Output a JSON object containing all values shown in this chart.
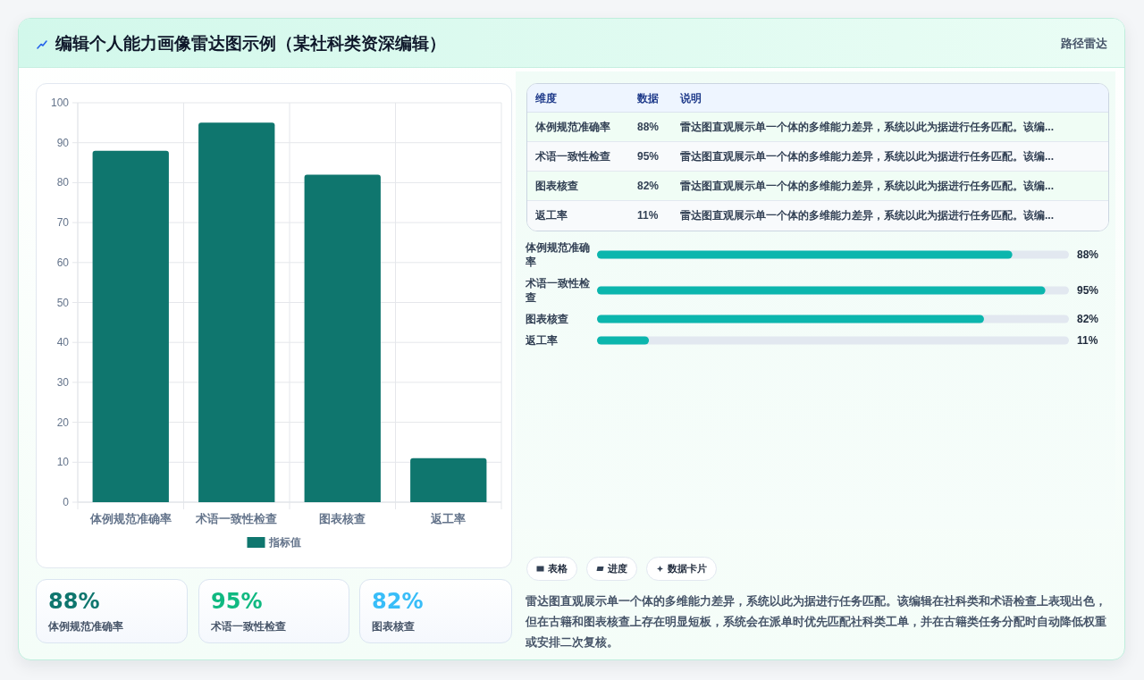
{
  "chart_data": [
    {
      "type": "other",
      "title": "编辑个人能力画像雷达图示例（某社科类资深编辑）",
      "subtitle": "路径雷达"
    },
    {
      "type": "bar",
      "categories": [
        "体例规范准确率",
        "术语一致性检查",
        "图表核查",
        "返工率"
      ],
      "series": [
        {
          "name": "指标值",
          "color": "#0f766e",
          "values": [
            88,
            95,
            82,
            11
          ]
        }
      ],
      "ylim": [
        0,
        100
      ],
      "yticks": [
        0,
        10,
        20,
        30,
        40,
        50,
        60,
        70,
        80,
        90,
        100
      ],
      "grid": true,
      "legend": "bottom"
    },
    {
      "type": "other",
      "categories": [
        "体例规范准确率",
        "术语一致性检查",
        "图表核查"
      ],
      "value_labels": [
        "88%",
        "95%",
        "82%"
      ]
    },
    {
      "type": "other",
      "categories": [
        "体例规范准确率",
        "术语一致性检查",
        "图表核查",
        "返工率"
      ],
      "value_labels": [
        "88%",
        "95%",
        "82%",
        "11%"
      ],
      "annotations": [
        "维度",
        "数据",
        "说明",
        "雷达图直观展示单一个体的多维能力差异，系统以此为据进行任务匹配。该编...",
        "雷达图直观展示单一个体的多维能力差异，系统以此为据进行任务匹配。该编...",
        "雷达图直观展示单一个体的多维能力差异，系统以此为据进行任务匹配。该编...",
        "雷达图直观展示单一个体的多维能力差异，系统以此为据进行任务匹配。该编..."
      ]
    },
    {
      "type": "bar",
      "orientation": "horizontal",
      "categories": [
        "体例规范准确率",
        "术语一致性检查",
        "图表核查",
        "返工率"
      ],
      "values": [
        88,
        95,
        82,
        11
      ],
      "value_labels": [
        "88%",
        "95%",
        "82%",
        "11%"
      ],
      "color": "#0bb6ad",
      "xlim": [
        0,
        100
      ],
      "tick_labels": "y"
    },
    {
      "type": "other",
      "annotations": [
        "表格",
        "进度",
        "数据卡片",
        "雷达图直观展示单一个体的多维能力差异，系统以此为据进行任务匹配。该编辑在社科类和术语检查上表现出色，但在古籍和图表核查上存在明显短板，系统会在派单时优先匹配社科类工单，并在古籍类任务分配时自动降低权重或安排二次复核。"
      ]
    }
  ]
}
